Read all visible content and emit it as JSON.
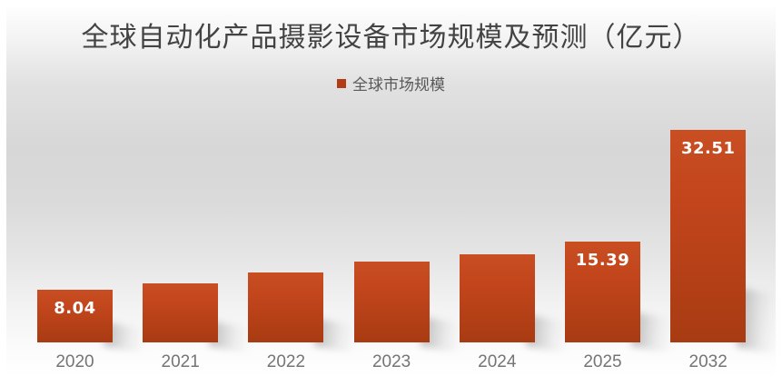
{
  "title": "全球自动化产品摄影设备市场规模及预测（亿元）",
  "legend": {
    "label": "全球市场规模"
  },
  "chart_data": {
    "type": "bar",
    "title": "全球自动化产品摄影设备市场规模及预测（亿元）",
    "unit": "亿元",
    "categories": [
      "2020",
      "2021",
      "2022",
      "2023",
      "2024",
      "2025",
      "2032"
    ],
    "series": [
      {
        "name": "全球市场规模",
        "values": [
          8.04,
          9.0,
          10.7,
          12.3,
          13.5,
          15.39,
          32.51
        ]
      }
    ],
    "data_labels_shown": [
      "8.04",
      "",
      "",
      "",
      "",
      "15.39",
      "32.51"
    ],
    "ylim": [
      0,
      35
    ],
    "grid": false,
    "y_axis_visible": false,
    "x_axis_visible": false,
    "legend_position": "top-center"
  },
  "colors": {
    "bar_gradient_top": "#c94e22",
    "bar_gradient_mid": "#c2451c",
    "bar_gradient_bottom": "#a83b12",
    "legend_swatch": "#b13c15",
    "title_text": "#434343",
    "legend_text": "#595959",
    "axis_label_text": "#757575",
    "data_label_text": "#ffffff",
    "background_mid": "#d7d7d7"
  }
}
